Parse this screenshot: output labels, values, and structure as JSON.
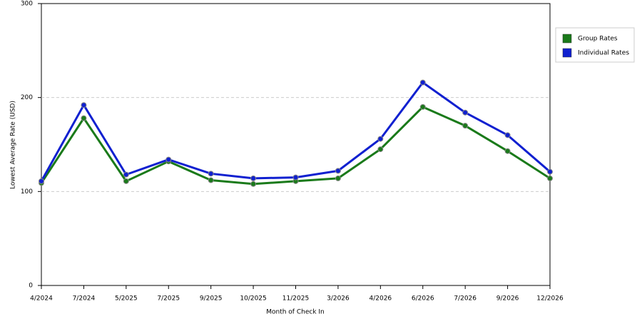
{
  "chart_data": {
    "type": "line",
    "x_label": "Month of Check In",
    "y_label": "Lowest Average Rate (USD)",
    "categories": [
      "4/2024",
      "7/2024",
      "5/2025",
      "7/2025",
      "9/2025",
      "10/2025",
      "11/2025",
      "3/2026",
      "4/2026",
      "6/2026",
      "7/2026",
      "9/2026",
      "12/2026"
    ],
    "series": [
      {
        "name": "Group Rates",
        "color": "#1a7a1a",
        "values": [
          109,
          178,
          111,
          132,
          112,
          108,
          111,
          114,
          145,
          190,
          170,
          143,
          114
        ]
      },
      {
        "name": "Individual Rates",
        "color": "#1020d0",
        "values": [
          111,
          192,
          118,
          134,
          119,
          114,
          115,
          122,
          156,
          216,
          184,
          160,
          121
        ]
      }
    ],
    "ylim": [
      0,
      300
    ],
    "yticks": [
      0,
      100,
      200,
      300
    ],
    "grid": true,
    "legend": "right"
  }
}
